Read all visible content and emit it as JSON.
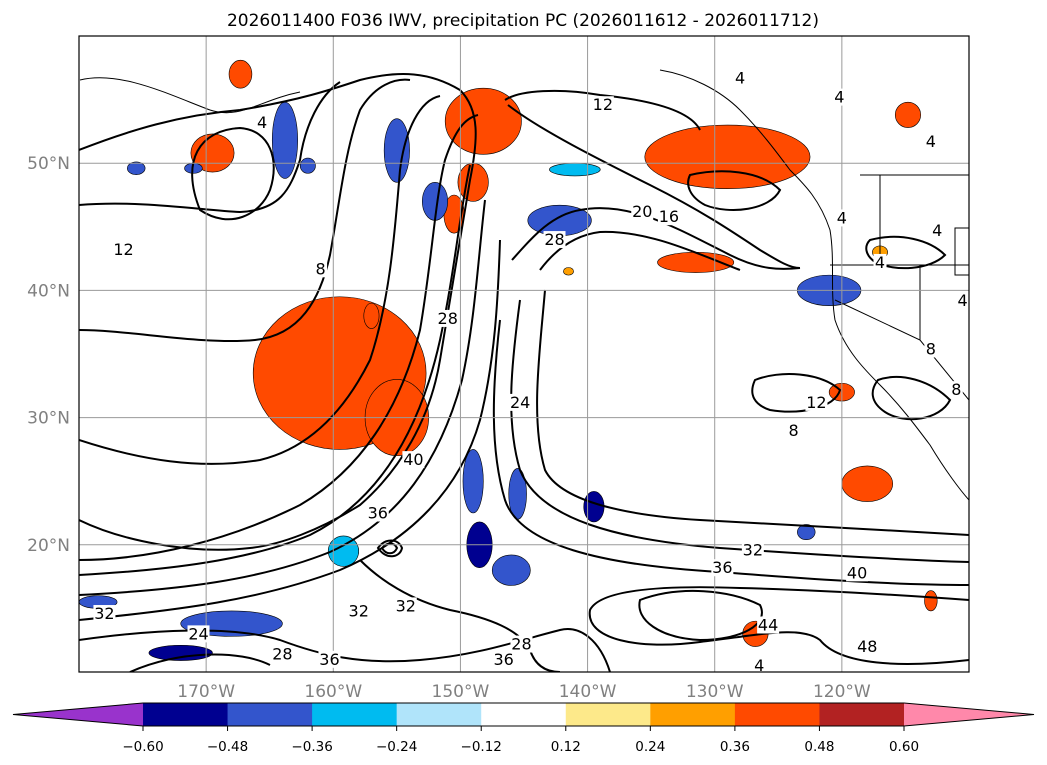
{
  "chart_data": {
    "type": "contour-map",
    "title": "2026011400 F036 IWV, precipitation PC (2026011612 - 2026011712)",
    "map": {
      "lon_range": [
        -180,
        -110
      ],
      "lat_range": [
        10,
        60
      ],
      "grid": true,
      "lon_ticks": [
        {
          "value": -170,
          "label": "170°W"
        },
        {
          "value": -160,
          "label": "160°W"
        },
        {
          "value": -150,
          "label": "150°W"
        },
        {
          "value": -140,
          "label": "140°W"
        },
        {
          "value": -130,
          "label": "130°W"
        },
        {
          "value": -120,
          "label": "120°W"
        }
      ],
      "lat_ticks": [
        {
          "value": 50,
          "label": "50°N"
        },
        {
          "value": 40,
          "label": "40°N"
        },
        {
          "value": 30,
          "label": "30°N"
        },
        {
          "value": 20,
          "label": "20°N"
        }
      ]
    },
    "iwv_contour_labels": [
      {
        "text": "12",
        "lon": -176.5,
        "lat": 43.0
      },
      {
        "text": "12",
        "lon": -138.8,
        "lat": 54.4
      },
      {
        "text": "8",
        "lon": -161.0,
        "lat": 41.5
      },
      {
        "text": "4",
        "lon": -165.6,
        "lat": 53.0
      },
      {
        "text": "4",
        "lon": -128.0,
        "lat": 56.5
      },
      {
        "text": "4",
        "lon": -120.2,
        "lat": 55.0
      },
      {
        "text": "4",
        "lon": -113.0,
        "lat": 51.5
      },
      {
        "text": "4",
        "lon": -112.5,
        "lat": 44.5
      },
      {
        "text": "4",
        "lon": -110.5,
        "lat": 39.0
      },
      {
        "text": "4",
        "lon": -120.0,
        "lat": 45.5
      },
      {
        "text": "4",
        "lon": -117.0,
        "lat": 42.0
      },
      {
        "text": "8",
        "lon": -113.0,
        "lat": 35.2
      },
      {
        "text": "8",
        "lon": -123.8,
        "lat": 28.8
      },
      {
        "text": "12",
        "lon": -122.0,
        "lat": 31.0
      },
      {
        "text": "8",
        "lon": -111.0,
        "lat": 32.0
      },
      {
        "text": "20",
        "lon": -135.7,
        "lat": 46.0
      },
      {
        "text": "16",
        "lon": -133.6,
        "lat": 45.6
      },
      {
        "text": "28",
        "lon": -142.6,
        "lat": 43.8
      },
      {
        "text": "28",
        "lon": -151.0,
        "lat": 37.6
      },
      {
        "text": "24",
        "lon": -145.3,
        "lat": 31.0
      },
      {
        "text": "40",
        "lon": -153.7,
        "lat": 26.5
      },
      {
        "text": "36",
        "lon": -156.5,
        "lat": 22.3
      },
      {
        "text": "32",
        "lon": -158.0,
        "lat": 14.6
      },
      {
        "text": "32",
        "lon": -154.3,
        "lat": 15.0
      },
      {
        "text": "32",
        "lon": -178.0,
        "lat": 14.4
      },
      {
        "text": "24",
        "lon": -170.6,
        "lat": 12.8
      },
      {
        "text": "28",
        "lon": -164.0,
        "lat": 11.2
      },
      {
        "text": "36",
        "lon": -160.3,
        "lat": 10.8
      },
      {
        "text": "36",
        "lon": -146.6,
        "lat": 10.8
      },
      {
        "text": "28",
        "lon": -145.2,
        "lat": 12.0
      },
      {
        "text": "32",
        "lon": -127.0,
        "lat": 19.4
      },
      {
        "text": "36",
        "lon": -129.4,
        "lat": 18.0
      },
      {
        "text": "40",
        "lon": -118.8,
        "lat": 17.6
      },
      {
        "text": "44",
        "lon": -125.8,
        "lat": 13.5
      },
      {
        "text": "48",
        "lon": -118.0,
        "lat": 11.8
      },
      {
        "text": "4",
        "lon": -126.5,
        "lat": 10.3
      }
    ],
    "colorbar": {
      "ticks": [
        "−0.60",
        "−0.48",
        "−0.36",
        "−0.24",
        "−0.12",
        "0.12",
        "0.24",
        "0.36",
        "0.48",
        "0.60"
      ],
      "bins": [
        {
          "from": null,
          "to": -0.6,
          "color": "#9933cc"
        },
        {
          "from": -0.6,
          "to": -0.48,
          "color": "#000090"
        },
        {
          "from": -0.48,
          "to": -0.36,
          "color": "#3355cc"
        },
        {
          "from": -0.36,
          "to": -0.24,
          "color": "#00bbf0"
        },
        {
          "from": -0.24,
          "to": -0.12,
          "color": "#b0e4fa"
        },
        {
          "from": -0.12,
          "to": 0.12,
          "color": "#ffffff"
        },
        {
          "from": 0.12,
          "to": 0.24,
          "color": "#fde98a"
        },
        {
          "from": 0.24,
          "to": 0.36,
          "color": "#ff9f00"
        },
        {
          "from": 0.36,
          "to": 0.48,
          "color": "#ff4a00"
        },
        {
          "from": 0.48,
          "to": 0.6,
          "color": "#b22222"
        },
        {
          "from": 0.6,
          "to": null,
          "color": "#ff88aa"
        }
      ]
    },
    "precip_pc_regions": [
      {
        "lon": -159.5,
        "lat": 33.5,
        "rx": 4.5,
        "ry": 4.0,
        "value": 0.52
      },
      {
        "lon": -159.5,
        "lat": 33.5,
        "rx": 6.8,
        "ry": 6.0,
        "value": 0.4
      },
      {
        "lon": -155.0,
        "lat": 30.0,
        "rx": 2.5,
        "ry": 3.0,
        "value": 0.42
      },
      {
        "lon": -169.5,
        "lat": 50.8,
        "rx": 1.7,
        "ry": 1.5,
        "value": 0.4
      },
      {
        "lon": -167.3,
        "lat": 57.0,
        "rx": 0.9,
        "ry": 1.1,
        "value": 0.4
      },
      {
        "lon": -148.2,
        "lat": 53.0,
        "rx": 2.0,
        "ry": 1.8,
        "value": 0.61
      },
      {
        "lon": -148.2,
        "lat": 53.3,
        "rx": 3.0,
        "ry": 2.6,
        "value": 0.4
      },
      {
        "lon": -149.0,
        "lat": 48.5,
        "rx": 1.2,
        "ry": 1.5,
        "value": 0.4
      },
      {
        "lon": -129.5,
        "lat": 50.5,
        "rx": 3.5,
        "ry": 1.5,
        "value": 0.52
      },
      {
        "lon": -129.0,
        "lat": 50.5,
        "rx": 6.5,
        "ry": 2.5,
        "value": 0.4
      },
      {
        "lon": -131.5,
        "lat": 42.2,
        "rx": 3.0,
        "ry": 0.8,
        "value": 0.4
      },
      {
        "lon": -118.0,
        "lat": 24.8,
        "rx": 2.0,
        "ry": 1.4,
        "value": 0.4
      },
      {
        "lon": -120.0,
        "lat": 32.0,
        "rx": 1.0,
        "ry": 0.7,
        "value": 0.4
      },
      {
        "lon": -114.8,
        "lat": 53.8,
        "rx": 1.0,
        "ry": 1.0,
        "value": 0.4
      },
      {
        "lon": -117.0,
        "lat": 43.0,
        "rx": 0.6,
        "ry": 0.5,
        "value": 0.3
      },
      {
        "lon": -126.8,
        "lat": 13.0,
        "rx": 1.0,
        "ry": 1.0,
        "value": 0.4
      },
      {
        "lon": -113.0,
        "lat": 15.6,
        "rx": 0.5,
        "ry": 0.8,
        "value": 0.4
      },
      {
        "lon": -150.5,
        "lat": 46.0,
        "rx": 0.8,
        "ry": 1.5,
        "value": 0.4
      },
      {
        "lon": -158.8,
        "lat": 19.5,
        "rx": 0.8,
        "ry": 0.8,
        "value": -0.62
      },
      {
        "lon": -157.0,
        "lat": 38.0,
        "rx": 0.6,
        "ry": 1.0,
        "value": 0.4
      },
      {
        "lon": -141.5,
        "lat": 41.5,
        "rx": 0.4,
        "ry": 0.3,
        "value": 0.3
      }
    ],
    "precip_nc_regions": [
      {
        "lon": -163.8,
        "lat": 51.8,
        "rx": 1.0,
        "ry": 3.0,
        "value": -0.4
      },
      {
        "lon": -155.0,
        "lat": 51.0,
        "rx": 1.0,
        "ry": 2.5,
        "value": -0.45
      },
      {
        "lon": -152.0,
        "lat": 47.0,
        "rx": 1.0,
        "ry": 1.5,
        "value": -0.4
      },
      {
        "lon": -142.2,
        "lat": 45.5,
        "rx": 2.5,
        "ry": 1.2,
        "value": -0.45
      },
      {
        "lon": -141.0,
        "lat": 49.5,
        "rx": 2.0,
        "ry": 0.5,
        "value": -0.35
      },
      {
        "lon": -121.0,
        "lat": 40.0,
        "rx": 2.5,
        "ry": 1.2,
        "value": -0.4
      },
      {
        "lon": -149.0,
        "lat": 25.0,
        "rx": 0.8,
        "ry": 2.5,
        "value": -0.4
      },
      {
        "lon": -145.5,
        "lat": 24.0,
        "rx": 0.7,
        "ry": 2.0,
        "value": -0.4
      },
      {
        "lon": -139.5,
        "lat": 23.0,
        "rx": 0.8,
        "ry": 1.2,
        "value": -0.5
      },
      {
        "lon": -148.5,
        "lat": 20.0,
        "rx": 1.0,
        "ry": 1.8,
        "value": -0.5
      },
      {
        "lon": -146.0,
        "lat": 18.0,
        "rx": 1.5,
        "ry": 1.2,
        "value": -0.45
      },
      {
        "lon": -168.0,
        "lat": 13.8,
        "rx": 4.0,
        "ry": 1.0,
        "value": -0.4
      },
      {
        "lon": -172.0,
        "lat": 11.5,
        "rx": 2.5,
        "ry": 0.6,
        "value": -0.52
      },
      {
        "lon": -178.5,
        "lat": 15.5,
        "rx": 1.5,
        "ry": 0.5,
        "value": -0.4
      },
      {
        "lon": -122.8,
        "lat": 21.0,
        "rx": 0.7,
        "ry": 0.6,
        "value": -0.4
      },
      {
        "lon": -171.0,
        "lat": 49.6,
        "rx": 0.7,
        "ry": 0.4,
        "value": -0.4
      },
      {
        "lon": -175.5,
        "lat": 49.6,
        "rx": 0.7,
        "ry": 0.5,
        "value": -0.4
      },
      {
        "lon": -162.0,
        "lat": 49.8,
        "rx": 0.6,
        "ry": 0.6,
        "value": -0.4
      },
      {
        "lon": -159.2,
        "lat": 19.5,
        "rx": 1.2,
        "ry": 1.2,
        "value": -0.3
      }
    ]
  }
}
